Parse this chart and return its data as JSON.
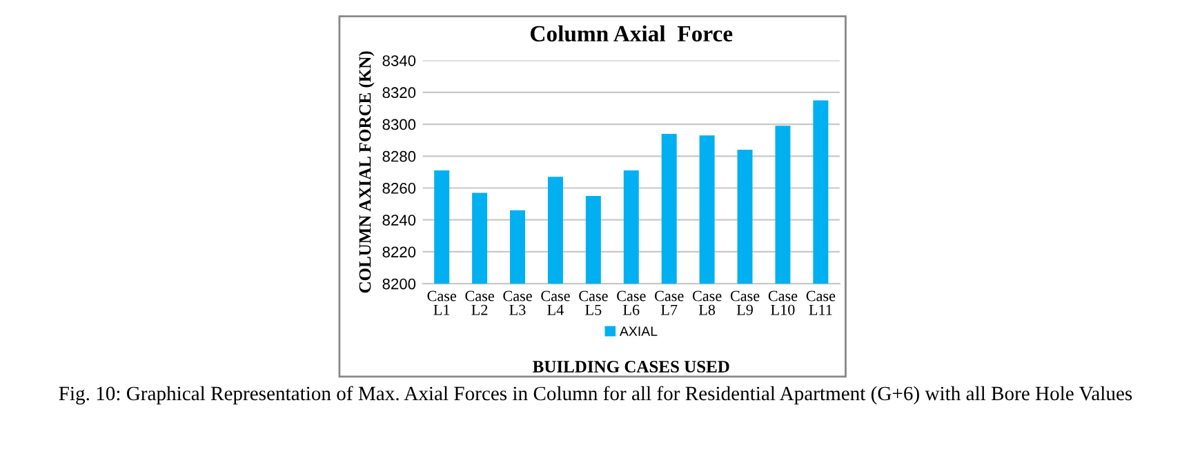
{
  "chart_data": {
    "type": "bar",
    "title": "Column Axial  Force",
    "xlabel": "BUILDING CASES USED",
    "ylabel": "COLUMN AXIAL FORCE (KN)",
    "categories": [
      "Case\nL1",
      "Case\nL2",
      "Case\nL3",
      "Case\nL4",
      "Case\nL5",
      "Case\nL6",
      "Case\nL7",
      "Case\nL8",
      "Case\nL9",
      "Case\nL10",
      "Case\nL11"
    ],
    "series": [
      {
        "name": "AXIAL",
        "color": "#00b0f0",
        "values": [
          8271,
          8257,
          8246,
          8267,
          8255,
          8271,
          8294,
          8293,
          8284,
          8299,
          8315
        ]
      }
    ],
    "ylim": [
      8200,
      8340
    ],
    "yticks": [
      8200,
      8220,
      8240,
      8260,
      8280,
      8300,
      8320,
      8340
    ],
    "grid": "y",
    "legend": "bottom",
    "annotations": [
      "Fig. 10: Graphical Representation of Max. Axial Forces in Column for all for Residential Apartment (G+6) with all Bore Hole Values"
    ]
  }
}
